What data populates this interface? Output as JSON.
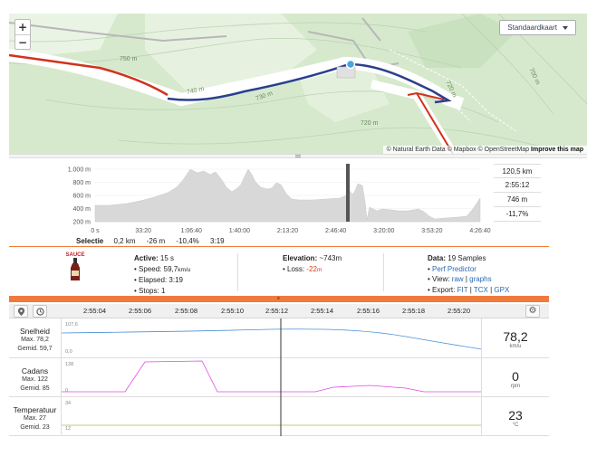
{
  "map": {
    "zoom_in": "+",
    "zoom_out": "−",
    "layer_select": "Standaardkaart",
    "attribution": "© Natural Earth Data © Mapbox © OpenStreetMap",
    "improve_link": "Improve this map",
    "contours": [
      "750 m",
      "740 m",
      "730 m",
      "720 m",
      "700 m",
      "720 m"
    ],
    "colors": {
      "route": "#2a3f8f",
      "road_red": "#d0321c",
      "land": "#d6e9cd"
    }
  },
  "elevation": {
    "y_ticks": [
      "1.000 m",
      "800 m",
      "600 m",
      "400 m",
      "200 m"
    ],
    "x_ticks": [
      "0 s",
      "33:20",
      "1:06:40",
      "1:40:00",
      "2:13:20",
      "2:46:40",
      "3:20:00",
      "3:53:20",
      "4:26:40"
    ],
    "stats": [
      "120,5 km",
      "2:55:12",
      "746 m",
      "-11,7%"
    ],
    "selection": {
      "label": "Selectie",
      "distance": "0,2 km",
      "gain": "-26 m",
      "grade": "-10,4%",
      "time": "3:19"
    }
  },
  "info": {
    "sauce_label": "SAUCE",
    "active": {
      "title": "Active:",
      "value": "15 s",
      "speed_label": "Speed:",
      "speed": "59,7",
      "speed_unit": "km/u",
      "elapsed_label": "Elapsed:",
      "elapsed": "3:19",
      "stops_label": "Stops:",
      "stops": "1"
    },
    "elevation": {
      "title": "Elevation:",
      "value": "~743",
      "unit": "m",
      "loss_label": "Loss:",
      "loss": "-22",
      "loss_unit": "m"
    },
    "data": {
      "title": "Data:",
      "value": "19 Samples",
      "perf": "Perf Predictor",
      "view_label": "View:",
      "view_raw": "raw",
      "view_sep": "|",
      "view_graphs": "graphs",
      "export_label": "Export:",
      "fit": "FIT",
      "tcx": "TCX",
      "gpx": "GPX"
    }
  },
  "timeline": {
    "ticks": [
      "2:55:04",
      "2:55:06",
      "2:55:08",
      "2:55:10",
      "2:55:12",
      "2:55:14",
      "2:55:16",
      "2:55:18",
      "2:55:20"
    ],
    "rows": [
      {
        "name": "Snelheid",
        "max": "Max. 78,2",
        "avg": "Gemid. 59,7",
        "value": "78,2",
        "unit": "km/u",
        "ymax": "107,6",
        "ymin": "0,0"
      },
      {
        "name": "Cadans",
        "max": "Max. 122",
        "avg": "Gemid. 85",
        "value": "0",
        "unit": "rpm",
        "ymax": "138",
        "ymin": "0"
      },
      {
        "name": "Temperatuur",
        "max": "Max. 27",
        "avg": "Gemid. 23",
        "value": "23",
        "unit": "°C",
        "ymax": "34",
        "ymin": "12"
      }
    ],
    "colors": {
      "speed": "#4a8fd6",
      "cadence": "#e048e0",
      "temp": "#b7b64a"
    }
  }
}
